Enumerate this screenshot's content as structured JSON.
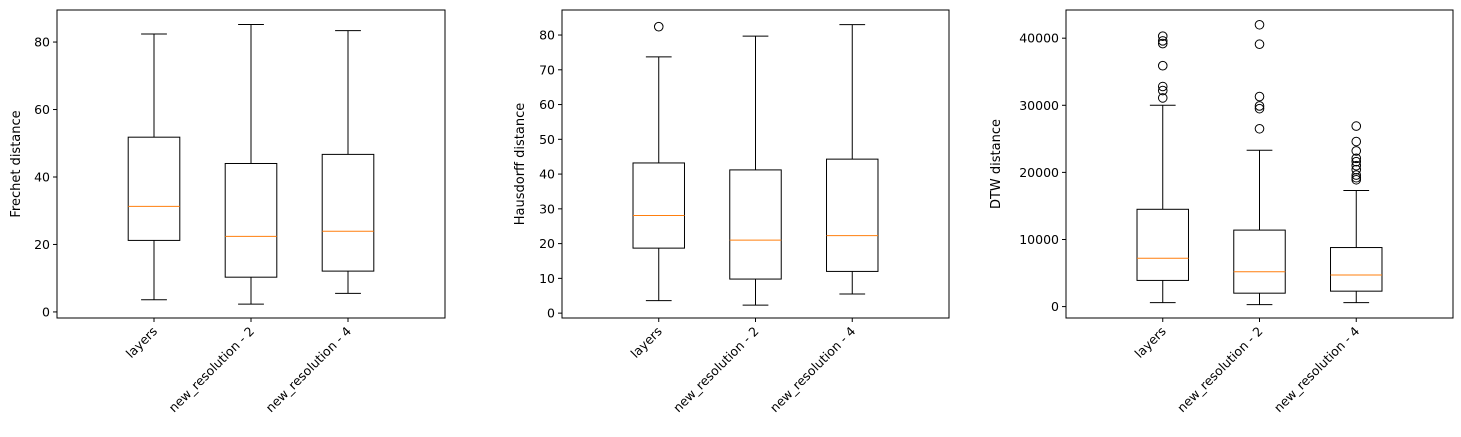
{
  "chart_data": [
    {
      "type": "box",
      "ylabel": "Frechet distance",
      "categories": [
        "layers",
        "new_resolution - 2",
        "new_resolution - 4"
      ],
      "ylim": [
        -1.8,
        89.5
      ],
      "yticks": [
        0,
        20,
        40,
        60,
        80
      ],
      "boxes": [
        {
          "whisker_low": 3.6,
          "q1": 21.2,
          "median": 31.3,
          "q3": 51.8,
          "whisker_high": 82.4,
          "outliers": []
        },
        {
          "whisker_low": 2.3,
          "q1": 10.3,
          "median": 22.4,
          "q3": 44.0,
          "whisker_high": 85.2,
          "outliers": []
        },
        {
          "whisker_low": 5.5,
          "q1": 12.1,
          "median": 23.9,
          "q3": 46.7,
          "whisker_high": 83.4,
          "outliers": []
        }
      ]
    },
    {
      "type": "box",
      "ylabel": "Hausdorff distance",
      "categories": [
        "layers",
        "new_resolution - 2",
        "new_resolution - 4"
      ],
      "ylim": [
        -1.4,
        87.2
      ],
      "yticks": [
        0,
        10,
        20,
        30,
        40,
        50,
        60,
        70,
        80
      ],
      "boxes": [
        {
          "whisker_low": 3.6,
          "q1": 18.7,
          "median": 28.1,
          "q3": 43.2,
          "whisker_high": 73.7,
          "outliers": [
            82.4
          ]
        },
        {
          "whisker_low": 2.3,
          "q1": 9.8,
          "median": 21.0,
          "q3": 41.2,
          "whisker_high": 79.7,
          "outliers": []
        },
        {
          "whisker_low": 5.5,
          "q1": 12.0,
          "median": 22.3,
          "q3": 44.3,
          "whisker_high": 83.0,
          "outliers": []
        }
      ]
    },
    {
      "type": "box",
      "ylabel": "DTW distance",
      "categories": [
        "layers",
        "new_resolution - 2",
        "new_resolution - 4"
      ],
      "ylim": [
        -1700,
        44200
      ],
      "yticks": [
        0,
        10000,
        20000,
        30000,
        40000
      ],
      "boxes": [
        {
          "whisker_low": 600,
          "q1": 3900,
          "median": 7200,
          "q3": 14500,
          "whisker_high": 30000,
          "outliers": [
            31100,
            32200,
            32800,
            35900,
            39200,
            39600,
            40300
          ]
        },
        {
          "whisker_low": 300,
          "q1": 2000,
          "median": 5200,
          "q3": 11400,
          "whisker_high": 23300,
          "outliers": [
            26500,
            29500,
            29900,
            31300,
            39100,
            42000
          ]
        },
        {
          "whisker_low": 600,
          "q1": 2300,
          "median": 4700,
          "q3": 8800,
          "whisker_high": 17300,
          "outliers": [
            18900,
            19200,
            19600,
            20400,
            21000,
            21600,
            22100,
            23200,
            24600,
            26900
          ]
        }
      ]
    }
  ]
}
